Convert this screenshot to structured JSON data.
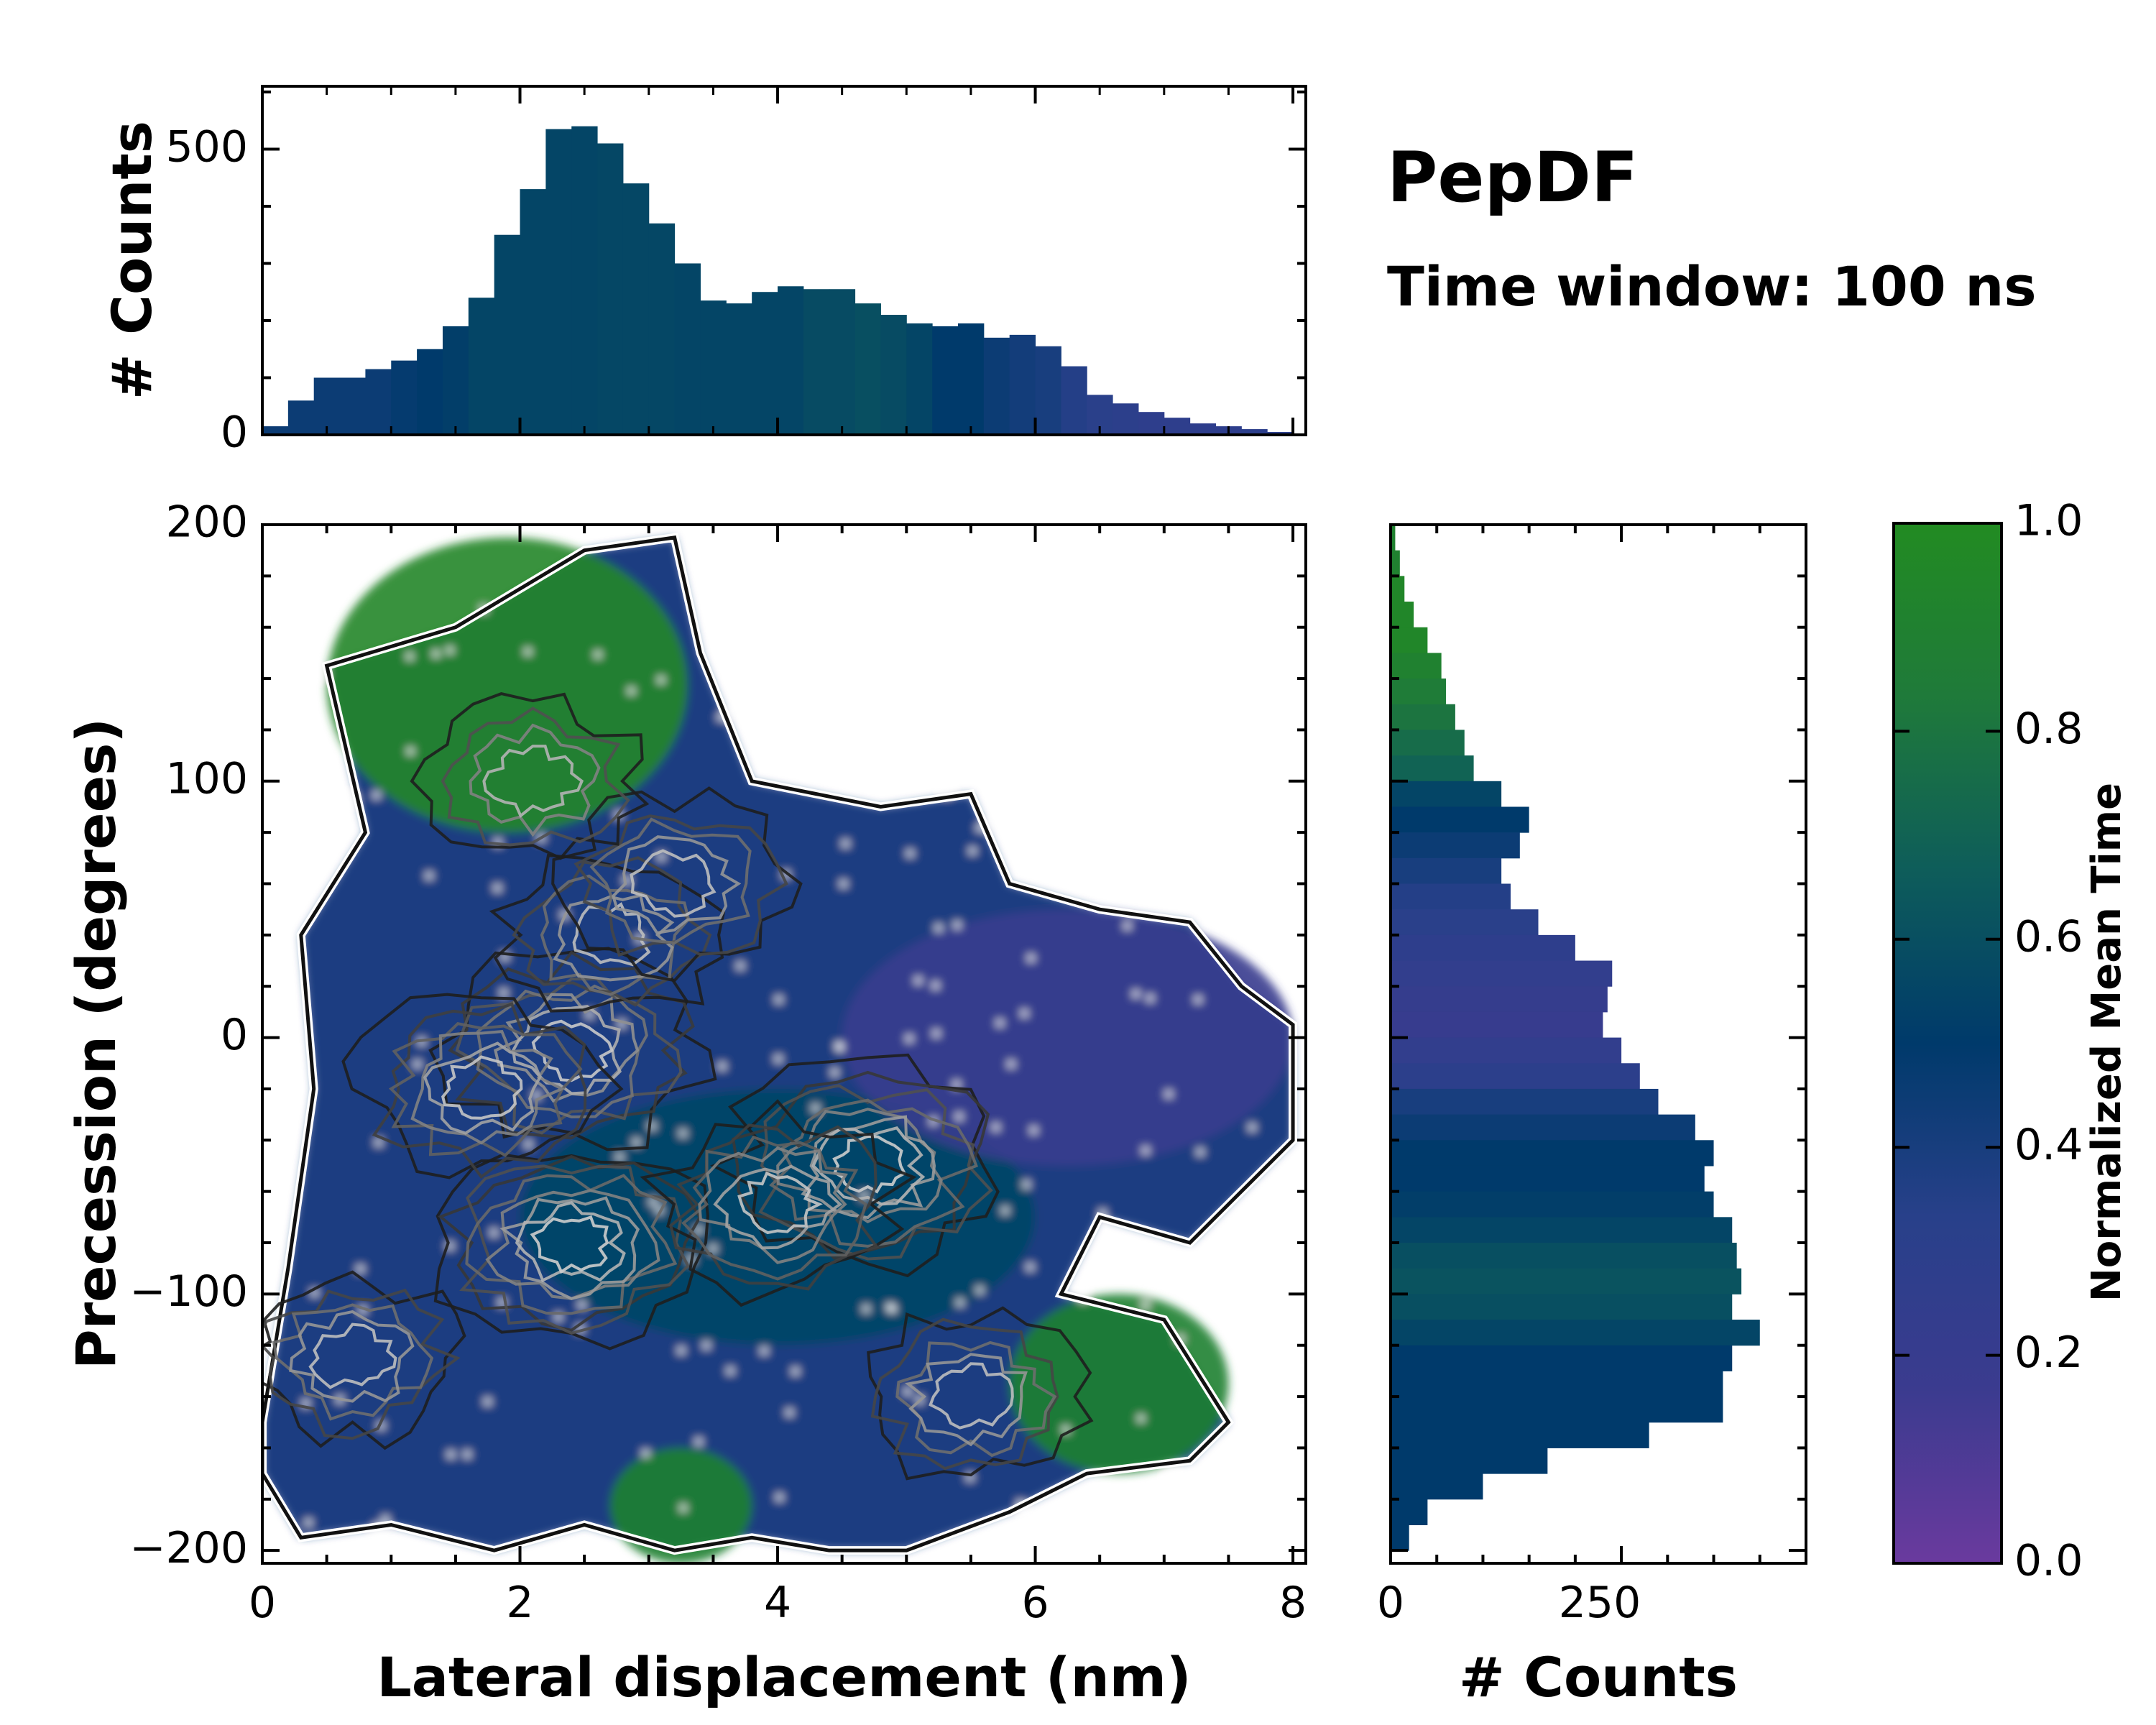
{
  "chart_data": {
    "type": "heatmap",
    "title": "PepDF",
    "subtitle": "Time window: 100 ns",
    "main": {
      "xlabel": "Lateral displacement (nm)",
      "ylabel": "Precession (degrees)",
      "xlim": [
        0,
        8.1
      ],
      "ylim": [
        -205,
        200
      ],
      "xticks": [
        0,
        2,
        4,
        6,
        8
      ],
      "xtick_labels": [
        "0",
        "2",
        "4",
        "6",
        "8"
      ],
      "yticks": [
        -200,
        -100,
        0,
        100,
        200
      ],
      "ytick_labels": [
        "−200",
        "−100",
        "0",
        "100",
        "200"
      ],
      "density_peaks": [
        {
          "x": 2.4,
          "y": -5,
          "level": 0.85
        },
        {
          "x": 2.4,
          "y": -80,
          "level": 0.95
        },
        {
          "x": 4.7,
          "y": -50,
          "level": 1.0
        },
        {
          "x": 1.7,
          "y": -20,
          "level": 0.7
        },
        {
          "x": 4.0,
          "y": -65,
          "level": 0.65
        },
        {
          "x": 5.5,
          "y": -140,
          "level": 0.45
        },
        {
          "x": 0.7,
          "y": -125,
          "level": 0.45
        },
        {
          "x": 2.7,
          "y": 40,
          "level": 0.5
        },
        {
          "x": 3.2,
          "y": 60,
          "level": 0.55
        },
        {
          "x": 2.1,
          "y": 100,
          "level": 0.4
        }
      ],
      "color_regions": [
        {
          "label": "high mean time (upper-left)",
          "x": [
            0.5,
            3.3
          ],
          "y": [
            80,
            195
          ],
          "value": 0.95
        },
        {
          "label": "high mean time (lower-right)",
          "x": [
            5.8,
            7.5
          ],
          "y": [
            -170,
            -100
          ],
          "value": 0.9
        },
        {
          "label": "high mean time (bottom)",
          "x": [
            2.7,
            3.8
          ],
          "y": [
            -205,
            -160
          ],
          "value": 0.9
        },
        {
          "label": "intermediate (center)",
          "x": [
            2.0,
            6.0
          ],
          "y": [
            -120,
            -20
          ],
          "value": 0.55
        },
        {
          "label": "low mean time (right lobe)",
          "x": [
            4.5,
            8.0
          ],
          "y": [
            -50,
            50
          ],
          "value": 0.2
        }
      ]
    },
    "top_histogram": {
      "ylabel": "# Counts",
      "ylim": [
        0,
        610
      ],
      "yticks": [
        0,
        500
      ],
      "ytick_labels": [
        "0",
        "500"
      ],
      "x_bin_centers": [
        0.1,
        0.3,
        0.5,
        0.7,
        0.9,
        1.1,
        1.3,
        1.5,
        1.7,
        1.9,
        2.1,
        2.3,
        2.5,
        2.7,
        2.9,
        3.1,
        3.3,
        3.5,
        3.7,
        3.9,
        4.1,
        4.3,
        4.5,
        4.7,
        4.9,
        5.1,
        5.3,
        5.5,
        5.7,
        5.9,
        6.1,
        6.3,
        6.5,
        6.7,
        6.9,
        7.1,
        7.3,
        7.5,
        7.7,
        7.9
      ],
      "counts": [
        15,
        60,
        100,
        100,
        115,
        130,
        150,
        190,
        240,
        350,
        430,
        535,
        540,
        510,
        440,
        370,
        300,
        235,
        230,
        250,
        260,
        255,
        255,
        230,
        210,
        195,
        190,
        195,
        170,
        175,
        155,
        120,
        70,
        55,
        40,
        30,
        20,
        15,
        10,
        5
      ],
      "bin_color_values": [
        0.45,
        0.45,
        0.45,
        0.45,
        0.45,
        0.48,
        0.5,
        0.52,
        0.55,
        0.55,
        0.55,
        0.55,
        0.55,
        0.56,
        0.56,
        0.56,
        0.55,
        0.55,
        0.55,
        0.55,
        0.55,
        0.58,
        0.58,
        0.6,
        0.58,
        0.55,
        0.5,
        0.5,
        0.45,
        0.42,
        0.4,
        0.35,
        0.32,
        0.3,
        0.28,
        0.28,
        0.28,
        0.28,
        0.3,
        0.3
      ]
    },
    "right_histogram": {
      "xlabel": "# Counts",
      "xlim": [
        0,
        450
      ],
      "xticks": [
        0,
        250
      ],
      "xtick_labels": [
        "0",
        "250"
      ],
      "y_bin_centers": [
        195,
        185,
        175,
        165,
        155,
        145,
        135,
        125,
        115,
        105,
        95,
        85,
        75,
        65,
        55,
        45,
        35,
        25,
        15,
        5,
        -5,
        -15,
        -25,
        -35,
        -45,
        -55,
        -65,
        -75,
        -85,
        -95,
        -105,
        -115,
        -125,
        -135,
        -145,
        -155,
        -165,
        -175,
        -185,
        -195
      ],
      "counts": [
        5,
        10,
        15,
        25,
        40,
        55,
        60,
        70,
        80,
        90,
        120,
        150,
        140,
        120,
        130,
        160,
        200,
        240,
        235,
        230,
        250,
        270,
        290,
        330,
        350,
        340,
        350,
        370,
        375,
        380,
        370,
        400,
        370,
        360,
        360,
        280,
        170,
        100,
        40,
        20
      ],
      "bin_color_values": [
        0.9,
        0.9,
        0.95,
        0.95,
        0.95,
        0.9,
        0.85,
        0.8,
        0.75,
        0.7,
        0.55,
        0.5,
        0.45,
        0.4,
        0.35,
        0.32,
        0.28,
        0.25,
        0.22,
        0.2,
        0.25,
        0.3,
        0.4,
        0.45,
        0.5,
        0.5,
        0.52,
        0.55,
        0.6,
        0.62,
        0.6,
        0.55,
        0.5,
        0.5,
        0.5,
        0.5,
        0.5,
        0.5,
        0.5,
        0.5
      ]
    },
    "colorbar": {
      "label": "Normalized Mean Time",
      "range": [
        0,
        1
      ],
      "ticks": [
        0.0,
        0.2,
        0.4,
        0.6,
        0.8,
        1.0
      ],
      "tick_labels": [
        "0.0",
        "0.2",
        "0.4",
        "0.6",
        "0.8",
        "1.0"
      ],
      "colors": [
        "#6a3a9e",
        "#3b3b8f",
        "#28408a",
        "#003a6b",
        "#0e5d5a",
        "#1f7a3a",
        "#228b22"
      ]
    }
  }
}
